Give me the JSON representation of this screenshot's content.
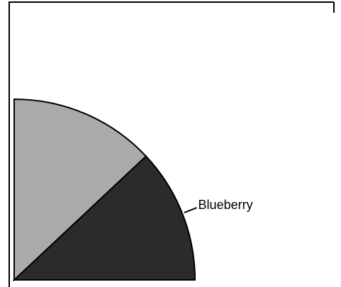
{
  "chart_data": {
    "type": "pie",
    "categories": [
      "Blueberry",
      null
    ],
    "values": [
      12,
      13
    ],
    "colors": [
      "#2b2b2b",
      "#aaaaaa"
    ]
  }
}
